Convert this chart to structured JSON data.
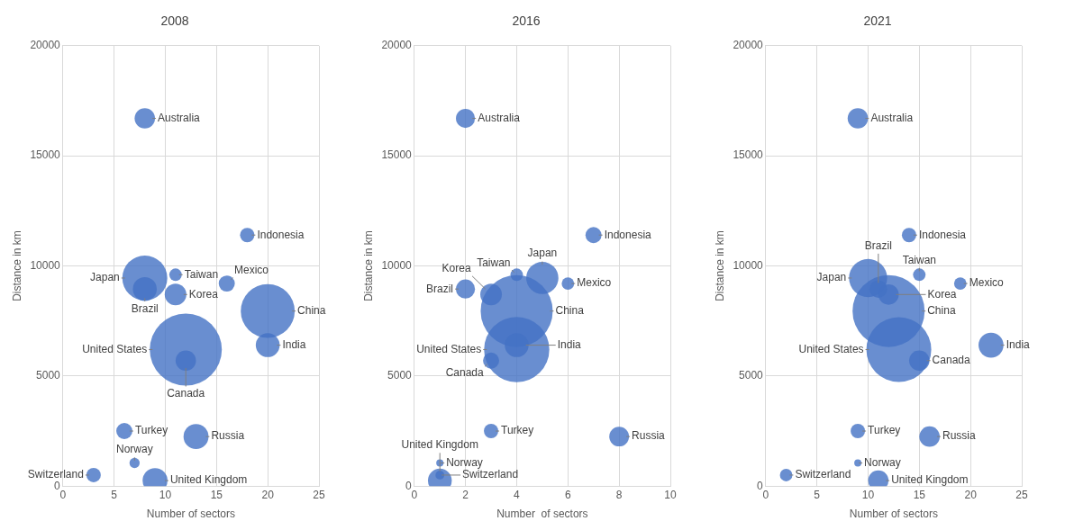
{
  "chart_data": [
    {
      "type": "bubble",
      "title": "2008",
      "xlabel": "Number of sectors",
      "ylabel": "Distance in km",
      "xlim": [
        0,
        25
      ],
      "xticks": [
        0,
        5,
        10,
        15,
        20,
        25
      ],
      "ylim": [
        0,
        20000
      ],
      "yticks": [
        0,
        5000,
        10000,
        15000,
        20000
      ],
      "grid": true,
      "legend": false,
      "series": [
        {
          "name": "Australia",
          "color": "#4472c4",
          "x": [
            8
          ],
          "values": [
            16700
          ],
          "sizes": [
            0.08
          ]
        },
        {
          "name": "Indonesia",
          "color": "#4472c4",
          "x": [
            18
          ],
          "values": [
            11400
          ],
          "sizes": [
            0.04
          ]
        },
        {
          "name": "Japan",
          "color": "#4472c4",
          "x": [
            8
          ],
          "values": [
            9450
          ],
          "sizes": [
            0.39
          ]
        },
        {
          "name": "Taiwan",
          "color": "#4472c4",
          "x": [
            11
          ],
          "values": [
            9600
          ],
          "sizes": [
            0.03
          ]
        },
        {
          "name": "Mexico",
          "color": "#4472c4",
          "x": [
            16
          ],
          "values": [
            9200
          ],
          "sizes": [
            0.05
          ]
        },
        {
          "name": "China",
          "color": "#4472c4",
          "x": [
            20
          ],
          "values": [
            7950
          ],
          "sizes": [
            0.56
          ]
        },
        {
          "name": "Brazil",
          "color": "#4472c4",
          "x": [
            8
          ],
          "values": [
            8950
          ],
          "sizes": [
            0.11
          ]
        },
        {
          "name": "Korea",
          "color": "#4472c4",
          "x": [
            11
          ],
          "values": [
            8700
          ],
          "sizes": [
            0.09
          ]
        },
        {
          "name": "United States",
          "color": "#4472c4",
          "x": [
            12
          ],
          "values": [
            6200
          ],
          "sizes": [
            1
          ]
        },
        {
          "name": "Canada",
          "color": "#4472c4",
          "x": [
            12
          ],
          "values": [
            5700
          ],
          "sizes": [
            0.08
          ]
        },
        {
          "name": "India",
          "color": "#4472c4",
          "x": [
            20
          ],
          "values": [
            6400
          ],
          "sizes": [
            0.11
          ]
        },
        {
          "name": "Turkey",
          "color": "#4472c4",
          "x": [
            6
          ],
          "values": [
            2500
          ],
          "sizes": [
            0.05
          ]
        },
        {
          "name": "Russia",
          "color": "#4472c4",
          "x": [
            13
          ],
          "values": [
            2250
          ],
          "sizes": [
            0.12
          ]
        },
        {
          "name": "Norway",
          "color": "#4472c4",
          "x": [
            7
          ],
          "values": [
            1050
          ],
          "sizes": [
            0.02
          ]
        },
        {
          "name": "Switzerland",
          "color": "#4472c4",
          "x": [
            3
          ],
          "values": [
            500
          ],
          "sizes": [
            0.04
          ]
        },
        {
          "name": "United Kingdom",
          "color": "#4472c4",
          "x": [
            9
          ],
          "values": [
            250
          ],
          "sizes": [
            0.12
          ]
        }
      ]
    },
    {
      "type": "bubble",
      "title": "2016",
      "xlabel": "Number  of sectors",
      "ylabel": "Distance in km",
      "xlim": [
        0,
        10
      ],
      "xticks": [
        0,
        2,
        4,
        6,
        8,
        10
      ],
      "ylim": [
        0,
        20000
      ],
      "yticks": [
        0,
        5000,
        10000,
        15000,
        20000
      ],
      "grid": true,
      "legend": false,
      "series": [
        {
          "name": "Australia",
          "color": "#4472c4",
          "x": [
            2
          ],
          "values": [
            16700
          ],
          "sizes": [
            0.07
          ]
        },
        {
          "name": "Indonesia",
          "color": "#4472c4",
          "x": [
            7
          ],
          "values": [
            11400
          ],
          "sizes": [
            0.05
          ]
        },
        {
          "name": "Brazil",
          "color": "#4472c4",
          "x": [
            2
          ],
          "values": [
            8950
          ],
          "sizes": [
            0.07
          ]
        },
        {
          "name": "Taiwan",
          "color": "#4472c4",
          "x": [
            4
          ],
          "values": [
            9600
          ],
          "sizes": [
            0.03
          ]
        },
        {
          "name": "Japan",
          "color": "#4472c4",
          "x": [
            5
          ],
          "values": [
            9450
          ],
          "sizes": [
            0.2
          ]
        },
        {
          "name": "Mexico",
          "color": "#4472c4",
          "x": [
            6
          ],
          "values": [
            9200
          ],
          "sizes": [
            0.03
          ]
        },
        {
          "name": "Korea",
          "color": "#4472c4",
          "x": [
            3
          ],
          "values": [
            8700
          ],
          "sizes": [
            0.09
          ]
        },
        {
          "name": "China",
          "color": "#4472c4",
          "x": [
            4
          ],
          "values": [
            7950
          ],
          "sizes": [
            1
          ]
        },
        {
          "name": "India",
          "color": "#4472c4",
          "x": [
            4
          ],
          "values": [
            6400
          ],
          "sizes": [
            0.11
          ]
        },
        {
          "name": "United States",
          "color": "#4472c4",
          "x": [
            4
          ],
          "values": [
            6200
          ],
          "sizes": [
            0.82
          ]
        },
        {
          "name": "Canada",
          "color": "#4472c4",
          "x": [
            3
          ],
          "values": [
            5700
          ],
          "sizes": [
            0.05
          ]
        },
        {
          "name": "Turkey",
          "color": "#4472c4",
          "x": [
            3
          ],
          "values": [
            2500
          ],
          "sizes": [
            0.04
          ]
        },
        {
          "name": "Russia",
          "color": "#4472c4",
          "x": [
            8
          ],
          "values": [
            2250
          ],
          "sizes": [
            0.075
          ]
        },
        {
          "name": "Norway",
          "color": "#4472c4",
          "x": [
            1
          ],
          "values": [
            1050
          ],
          "sizes": [
            0.01
          ]
        },
        {
          "name": "Switzerland",
          "color": "#4472c4",
          "x": [
            1
          ],
          "values": [
            500
          ],
          "sizes": [
            0.015
          ]
        },
        {
          "name": "United Kingdom",
          "color": "#4472c4",
          "x": [
            1
          ],
          "values": [
            250
          ],
          "sizes": [
            0.11
          ]
        }
      ]
    },
    {
      "type": "bubble",
      "title": "2021",
      "xlabel": "Number of sectors",
      "ylabel": "Distance in km",
      "xlim": [
        0,
        25
      ],
      "xticks": [
        0,
        5,
        10,
        15,
        20,
        25
      ],
      "ylim": [
        0,
        20000
      ],
      "yticks": [
        0,
        5000,
        10000,
        15000,
        20000
      ],
      "grid": true,
      "legend": false,
      "series": [
        {
          "name": "Australia",
          "color": "#4472c4",
          "x": [
            9
          ],
          "values": [
            16700
          ],
          "sizes": [
            0.08
          ]
        },
        {
          "name": "Indonesia",
          "color": "#4472c4",
          "x": [
            14
          ],
          "values": [
            11400
          ],
          "sizes": [
            0.04
          ]
        },
        {
          "name": "Japan",
          "color": "#4472c4",
          "x": [
            10
          ],
          "values": [
            9450
          ],
          "sizes": [
            0.28
          ]
        },
        {
          "name": "Korea",
          "color": "#4472c4",
          "x": [
            12
          ],
          "values": [
            8700
          ],
          "sizes": [
            0.08
          ]
        },
        {
          "name": "Taiwan",
          "color": "#4472c4",
          "x": [
            15
          ],
          "values": [
            9600
          ],
          "sizes": [
            0.03
          ]
        },
        {
          "name": "Mexico",
          "color": "#4472c4",
          "x": [
            19
          ],
          "values": [
            9200
          ],
          "sizes": [
            0.03
          ]
        },
        {
          "name": "Brazil",
          "color": "#4472c4",
          "x": [
            11
          ],
          "values": [
            8950
          ],
          "sizes": [
            0.06
          ]
        },
        {
          "name": "China",
          "color": "#4472c4",
          "x": [
            12
          ],
          "values": [
            7950
          ],
          "sizes": [
            1
          ]
        },
        {
          "name": "United States",
          "color": "#4472c4",
          "x": [
            13
          ],
          "values": [
            6200
          ],
          "sizes": [
            0.81
          ]
        },
        {
          "name": "India",
          "color": "#4472c4",
          "x": [
            22
          ],
          "values": [
            6400
          ],
          "sizes": [
            0.12
          ]
        },
        {
          "name": "Canada",
          "color": "#4472c4",
          "x": [
            15
          ],
          "values": [
            5700
          ],
          "sizes": [
            0.08
          ]
        },
        {
          "name": "Turkey",
          "color": "#4472c4",
          "x": [
            9
          ],
          "values": [
            2500
          ],
          "sizes": [
            0.04
          ]
        },
        {
          "name": "Russia",
          "color": "#4472c4",
          "x": [
            16
          ],
          "values": [
            2250
          ],
          "sizes": [
            0.08
          ]
        },
        {
          "name": "Norway",
          "color": "#4472c4",
          "x": [
            9
          ],
          "values": [
            1050
          ],
          "sizes": [
            0.01
          ]
        },
        {
          "name": "Switzerland",
          "color": "#4472c4",
          "x": [
            2
          ],
          "values": [
            500
          ],
          "sizes": [
            0.03
          ]
        },
        {
          "name": "United Kingdom",
          "color": "#4472c4",
          "x": [
            11
          ],
          "values": [
            250
          ],
          "sizes": [
            0.08
          ]
        }
      ]
    }
  ]
}
